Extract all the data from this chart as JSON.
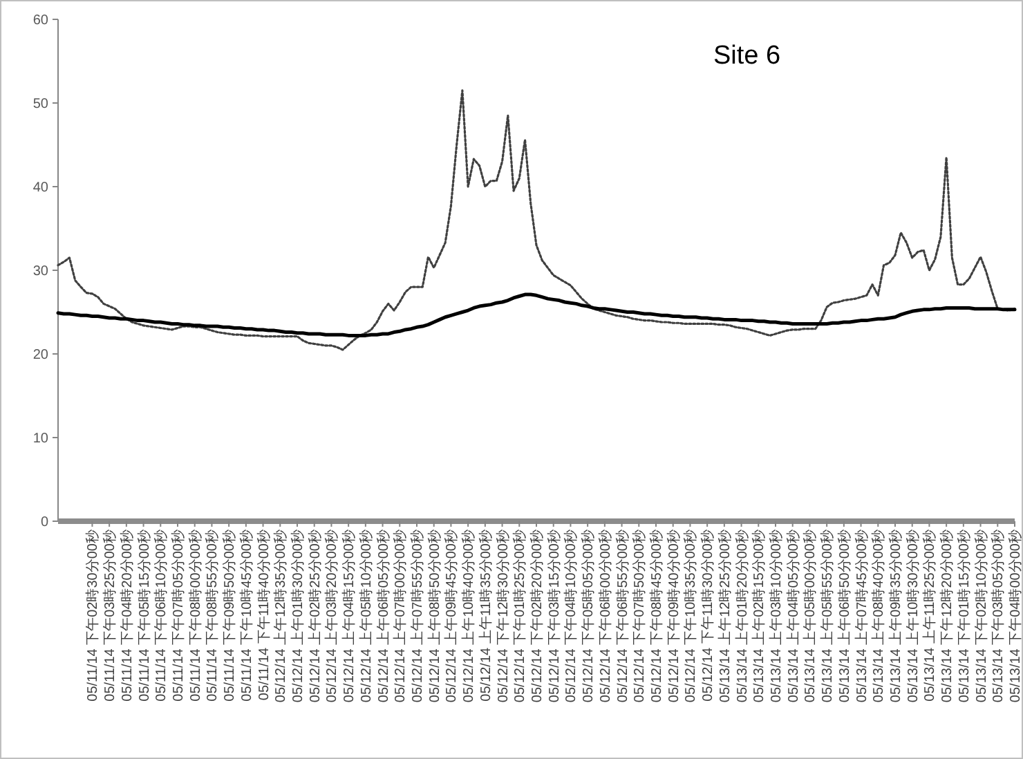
{
  "chart_data": {
    "type": "line",
    "title": "Site 6",
    "ylim": [
      0,
      60
    ],
    "yticks": [
      0,
      10,
      20,
      30,
      40,
      50,
      60
    ],
    "categories": [
      null,
      null,
      null,
      null,
      null,
      null,
      "05/11/14 下午02時30分00秒",
      null,
      null,
      "05/11/14 下午03時25分00秒",
      null,
      null,
      "05/11/14 下午04時20分00秒",
      null,
      null,
      "05/11/14 下午05時15分00秒",
      null,
      null,
      "05/11/14 下午06時10分00秒",
      null,
      null,
      "05/11/14 下午07時05分00秒",
      null,
      null,
      "05/11/14 下午08時00分00秒",
      null,
      null,
      "05/11/14 下午08時55分00秒",
      null,
      null,
      "05/11/14 下午09時50分00秒",
      null,
      null,
      "05/11/14 下午10時45分00秒",
      null,
      null,
      "05/11/14 下午11時40分00秒",
      null,
      null,
      "05/12/14 上午12時35分00秒",
      null,
      null,
      "05/12/14 上午01時30分00秒",
      null,
      null,
      "05/12/14 上午02時25分00秒",
      null,
      null,
      "05/12/14 上午03時20分00秒",
      null,
      null,
      "05/12/14 上午04時15分00秒",
      null,
      null,
      "05/12/14 上午05時10分00秒",
      null,
      null,
      "05/12/14 上午06時05分00秒",
      null,
      null,
      "05/12/14 上午07時00分00秒",
      null,
      null,
      "05/12/14 上午07時55分00秒",
      null,
      null,
      "05/12/14 上午08時50分00秒",
      null,
      null,
      "05/12/14 上午09時45分00秒",
      null,
      null,
      "05/12/14 上午10時40分00秒",
      null,
      null,
      "05/12/14 上午11時35分00秒",
      null,
      null,
      "05/12/14 下午12時30分00秒",
      null,
      null,
      "05/12/14 下午01時25分00秒",
      null,
      null,
      "05/12/14 下午02時20分00秒",
      null,
      null,
      "05/12/14 下午03時15分00秒",
      null,
      null,
      "05/12/14 下午04時10分00秒",
      null,
      null,
      "05/12/14 下午05時05分00秒",
      null,
      null,
      "05/12/14 下午06時00分00秒",
      null,
      null,
      "05/12/14 下午06時55分00秒",
      null,
      null,
      "05/12/14 下午07時50分00秒",
      null,
      null,
      "05/12/14 下午08時45分00秒",
      null,
      null,
      "05/12/14 下午09時40分00秒",
      null,
      null,
      "05/12/14 下午10時35分00秒",
      null,
      null,
      "05/12/14 下午11時30分00秒",
      null,
      null,
      "05/13/14 上午12時25分00秒",
      null,
      null,
      "05/13/14 上午01時20分00秒",
      null,
      null,
      "05/13/14 上午02時15分00秒",
      null,
      null,
      "05/13/14 上午03時10分00秒",
      null,
      null,
      "05/13/14 上午04時05分00秒",
      null,
      null,
      "05/13/14 上午05時00分00秒",
      null,
      null,
      "05/13/14 上午05時55分00秒",
      null,
      null,
      "05/13/14 上午06時50分00秒",
      null,
      null,
      "05/13/14 上午07時45分00秒",
      null,
      null,
      "05/13/14 上午08時40分00秒",
      null,
      null,
      "05/13/14 上午09時35分00秒",
      null,
      null,
      "05/13/14 上午10時30分00秒",
      null,
      null,
      "05/13/14 上午11時25分00秒",
      null,
      null,
      "05/13/14 下午12時20分00秒",
      null,
      null,
      "05/13/14 下午01時15分00秒",
      null,
      null,
      "05/13/14 下午02時10分00秒",
      null,
      null,
      "05/13/14 下午03時05分00秒",
      null,
      null,
      "05/13/14 下午04時00分00秒"
    ],
    "series": [
      {
        "color": "#404040",
        "line_style": "dotted",
        "values": [
          30.6,
          31.0,
          31.5,
          28.8,
          28.0,
          27.3,
          27.2,
          26.8,
          26.0,
          25.7,
          25.4,
          24.8,
          24.2,
          23.8,
          23.6,
          23.4,
          23.3,
          23.2,
          23.1,
          23.0,
          22.9,
          23.1,
          23.3,
          23.3,
          23.2,
          23.2,
          23.0,
          22.8,
          22.6,
          22.5,
          22.4,
          22.3,
          22.3,
          22.2,
          22.2,
          22.2,
          22.1,
          22.1,
          22.1,
          22.1,
          22.1,
          22.1,
          22.1,
          21.6,
          21.3,
          21.2,
          21.1,
          21.0,
          21.0,
          20.8,
          20.5,
          21.1,
          21.7,
          22.2,
          22.5,
          22.9,
          23.8,
          25.1,
          26.0,
          25.2,
          26.2,
          27.4,
          28.0,
          28.0,
          28.0,
          31.6,
          30.3,
          31.8,
          33.3,
          37.7,
          45,
          51.5,
          40,
          43.3,
          42.5,
          40,
          40.7,
          40.7,
          43,
          48.5,
          39.5,
          41,
          45.6,
          38,
          33,
          31.2,
          30.3,
          29.4,
          29,
          28.6,
          28.2,
          27.4,
          26.6,
          26,
          25.4,
          25.2,
          25.0,
          24.8,
          24.6,
          24.5,
          24.4,
          24.2,
          24.1,
          24.0,
          24.0,
          23.9,
          23.8,
          23.8,
          23.7,
          23.7,
          23.6,
          23.6,
          23.6,
          23.6,
          23.6,
          23.6,
          23.5,
          23.5,
          23.4,
          23.2,
          23.1,
          23.0,
          22.8,
          22.6,
          22.4,
          22.2,
          22.4,
          22.6,
          22.8,
          22.9,
          22.9,
          23.0,
          23.0,
          23.0,
          24,
          25.6,
          26.1,
          26.2,
          26.4,
          26.5,
          26.6,
          26.8,
          27,
          28.3,
          27,
          30.6,
          30.9,
          31.8,
          34.5,
          33.3,
          31.5,
          32.2,
          32.4,
          30.0,
          31.3,
          34,
          43.5,
          31.5,
          28.3,
          28.3,
          29,
          30.3,
          31.6,
          29.8,
          27.5,
          25.4,
          25.3,
          25.2,
          25.4
        ]
      },
      {
        "color": "#000000",
        "line_style": "solid",
        "values": [
          24.9,
          24.8,
          24.8,
          24.7,
          24.6,
          24.6,
          24.5,
          24.5,
          24.4,
          24.3,
          24.3,
          24.2,
          24.2,
          24.1,
          24.0,
          24.0,
          23.9,
          23.8,
          23.8,
          23.7,
          23.6,
          23.6,
          23.5,
          23.5,
          23.4,
          23.4,
          23.3,
          23.3,
          23.3,
          23.2,
          23.2,
          23.1,
          23.1,
          23.0,
          23.0,
          22.9,
          22.9,
          22.8,
          22.8,
          22.7,
          22.6,
          22.6,
          22.5,
          22.5,
          22.4,
          22.4,
          22.4,
          22.3,
          22.3,
          22.3,
          22.3,
          22.2,
          22.2,
          22.2,
          22.2,
          22.3,
          22.3,
          22.4,
          22.4,
          22.6,
          22.7,
          22.9,
          23.0,
          23.2,
          23.3,
          23.5,
          23.8,
          24.1,
          24.4,
          24.6,
          24.8,
          25.0,
          25.2,
          25.5,
          25.7,
          25.8,
          25.9,
          26.1,
          26.2,
          26.4,
          26.7,
          26.9,
          27.1,
          27.1,
          27.0,
          26.8,
          26.6,
          26.5,
          26.4,
          26.2,
          26.1,
          26.0,
          25.8,
          25.7,
          25.5,
          25.4,
          25.4,
          25.3,
          25.2,
          25.1,
          25.0,
          25.0,
          24.9,
          24.8,
          24.8,
          24.7,
          24.6,
          24.6,
          24.5,
          24.5,
          24.4,
          24.4,
          24.4,
          24.3,
          24.3,
          24.2,
          24.2,
          24.1,
          24.1,
          24.1,
          24.0,
          24.0,
          24.0,
          23.9,
          23.9,
          23.8,
          23.8,
          23.7,
          23.7,
          23.6,
          23.6,
          23.6,
          23.6,
          23.6,
          23.6,
          23.6,
          23.7,
          23.7,
          23.8,
          23.8,
          23.9,
          24.0,
          24.0,
          24.1,
          24.2,
          24.2,
          24.3,
          24.4,
          24.7,
          24.9,
          25.1,
          25.2,
          25.3,
          25.3,
          25.4,
          25.4,
          25.5,
          25.5,
          25.5,
          25.5,
          25.5,
          25.4,
          25.4,
          25.4,
          25.4,
          25.4,
          25.3,
          25.3,
          25.3
        ]
      }
    ]
  }
}
